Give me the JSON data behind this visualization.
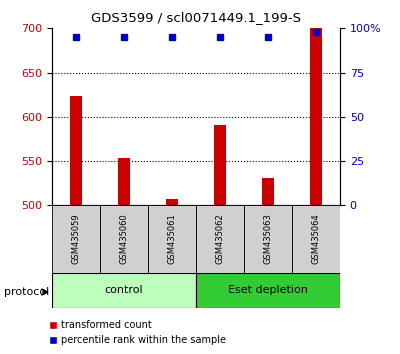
{
  "title": "GDS3599 / scl0071449.1_199-S",
  "samples": [
    "GSM435059",
    "GSM435060",
    "GSM435061",
    "GSM435062",
    "GSM435063",
    "GSM435064"
  ],
  "red_values": [
    623,
    553,
    507,
    591,
    531,
    700
  ],
  "blue_values": [
    95,
    95,
    95,
    95,
    95,
    98
  ],
  "ylim_left": [
    500,
    700
  ],
  "ylim_right": [
    0,
    100
  ],
  "yticks_left": [
    500,
    550,
    600,
    650,
    700
  ],
  "yticks_right": [
    0,
    25,
    50,
    75,
    100
  ],
  "ytick_labels_right": [
    "0",
    "25",
    "50",
    "75",
    "100%"
  ],
  "grid_values": [
    550,
    600,
    650
  ],
  "bar_color": "#cc0000",
  "dot_color": "#0000cc",
  "control_color": "#bbffbb",
  "eset_color": "#33cc33",
  "sample_box_color": "#d0d0d0",
  "protocol_label": "protocol",
  "control_label": "control",
  "eset_label": "Eset depletion",
  "legend_red": "transformed count",
  "legend_blue": "percentile rank within the sample",
  "bg_color": "#ffffff",
  "tick_label_color_left": "#cc0000",
  "tick_label_color_right": "#0000cc",
  "bar_width": 0.25,
  "n_samples": 6,
  "n_control": 3
}
